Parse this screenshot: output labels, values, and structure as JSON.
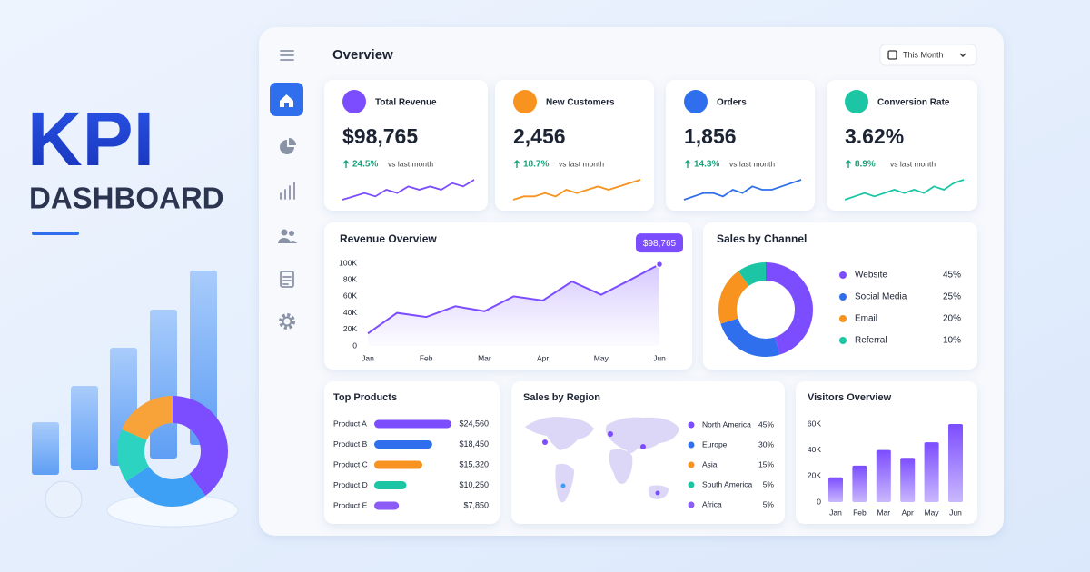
{
  "hero": {
    "title": "KPI",
    "subtitle": "DASHBOARD"
  },
  "header": {
    "title": "Overview",
    "period": "This Month"
  },
  "kpis": [
    {
      "label": "Total Revenue",
      "value": "$98,765",
      "change": "24.5%",
      "note": "vs last month",
      "color": "#7c4dff",
      "spark": [
        3,
        4,
        5,
        4,
        6,
        5,
        7,
        6,
        7,
        6,
        8,
        7,
        9
      ]
    },
    {
      "label": "New Customers",
      "value": "2,456",
      "change": "18.7%",
      "note": "vs last month",
      "color": "#f7931e",
      "spark": [
        3,
        4,
        4,
        5,
        4,
        6,
        5,
        6,
        7,
        6,
        7,
        8,
        9
      ]
    },
    {
      "label": "Orders",
      "value": "1,856",
      "change": "14.3%",
      "note": "vs last month",
      "color": "#2f6fed",
      "spark": [
        3,
        4,
        5,
        5,
        4,
        6,
        5,
        7,
        6,
        6,
        7,
        8,
        9
      ]
    },
    {
      "label": "Conversion Rate",
      "value": "3.62%",
      "change": "8.9%",
      "note": "vs last month",
      "color": "#1cc6a4",
      "spark": [
        3,
        4,
        5,
        4,
        5,
        6,
        5,
        6,
        5,
        7,
        6,
        8,
        9
      ]
    }
  ],
  "revenue_chart": {
    "type": "line",
    "title": "Revenue Overview",
    "annotation": "$98,765",
    "color": "#7c4dff",
    "x": [
      0,
      0.5,
      1,
      1.5,
      2,
      2.5,
      3,
      3.5,
      4,
      4.5,
      5
    ],
    "values": [
      15,
      40,
      35,
      48,
      42,
      60,
      55,
      78,
      62,
      80,
      98.765
    ],
    "xlim": [
      0,
      5
    ],
    "xticks": [
      {
        "value": 0,
        "label": "Jan"
      },
      {
        "value": 1,
        "label": "Feb"
      },
      {
        "value": 2,
        "label": "Mar"
      },
      {
        "value": 3,
        "label": "Apr"
      },
      {
        "value": 4,
        "label": "May"
      },
      {
        "value": 5,
        "label": "Jun"
      }
    ],
    "ylim": [
      0,
      100
    ],
    "yticks": [
      0,
      {
        "value": 20,
        "label": "20K"
      },
      {
        "value": 40,
        "label": "40K"
      },
      {
        "value": 60,
        "label": "60K"
      },
      {
        "value": 80,
        "label": "80K"
      },
      {
        "value": 100,
        "label": "100K"
      }
    ]
  },
  "channel_chart": {
    "type": "pie",
    "title": "Sales by Channel",
    "categories": [
      "Website",
      "Social Media",
      "Email",
      "Referral"
    ],
    "values": [
      45,
      25,
      20,
      10
    ],
    "value_labels": [
      "45%",
      "25%",
      "20%",
      "10%"
    ],
    "colors": [
      "#7c4dff",
      "#2f6fed",
      "#f7931e",
      "#1cc6a4"
    ]
  },
  "products_chart": {
    "type": "bar",
    "title": "Top Products",
    "categories": [
      "Product A",
      "Product B",
      "Product C",
      "Product D",
      "Product E"
    ],
    "values": [
      24560,
      18450,
      15320,
      10250,
      7850
    ],
    "value_labels": [
      "$24,560",
      "$18,450",
      "$15,320",
      "$10,250",
      "$7,850"
    ],
    "colors": [
      "#7c4dff",
      "#2f6fed",
      "#f7931e",
      "#1cc6a4",
      "#8c5cf6"
    ]
  },
  "region_chart": {
    "type": "list",
    "title": "Sales by Region",
    "categories": [
      "North America",
      "Europe",
      "Asia",
      "South America",
      "Africa"
    ],
    "values": [
      45,
      30,
      15,
      5,
      5
    ],
    "value_labels": [
      "45%",
      "30%",
      "15%",
      "5%",
      "5%"
    ],
    "colors": [
      "#7c4dff",
      "#2f6fed",
      "#f7931e",
      "#1cc6a4",
      "#8c5cf6"
    ]
  },
  "visitors_chart": {
    "type": "bar",
    "title": "Visitors Overview",
    "categories": [
      "Jan",
      "Feb",
      "Mar",
      "Apr",
      "May",
      "Jun"
    ],
    "values": [
      19,
      28,
      40,
      34,
      46,
      60
    ],
    "color": "#8c6cf6",
    "ylim": [
      0,
      60
    ],
    "yticks": [
      0,
      {
        "value": 20,
        "label": "20K"
      },
      {
        "value": 40,
        "label": "40K"
      },
      {
        "value": 60,
        "label": "60K"
      }
    ]
  }
}
